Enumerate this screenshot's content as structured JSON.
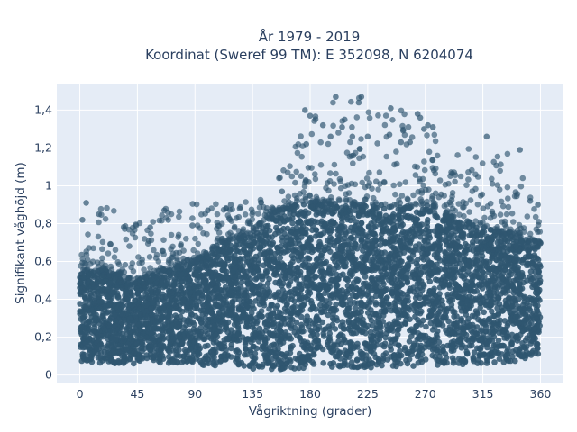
{
  "chart_data": {
    "type": "scatter",
    "title_line1": "År 1979 - 2019",
    "title_line2": "Koordinat (Sweref 99 TM): E 352098, N 6204074",
    "xlabel": "Vågriktning (grader)",
    "ylabel": "Signifikant våghöjd (m)",
    "xlim": [
      -18,
      378
    ],
    "ylim": [
      -0.04,
      1.54
    ],
    "x_ticks": [
      0,
      45,
      90,
      135,
      180,
      225,
      270,
      315,
      360
    ],
    "x_tick_labels": [
      "0",
      "45",
      "90",
      "135",
      "180",
      "225",
      "270",
      "315",
      "360"
    ],
    "y_ticks": [
      0,
      0.2,
      0.4,
      0.6,
      0.8,
      1.0,
      1.2,
      1.4
    ],
    "y_tick_labels": [
      "0",
      "0,2",
      "0,4",
      "0,6",
      "0,8",
      "1",
      "1,2",
      "1,4"
    ],
    "grid": true,
    "marker_color": "#2f5670",
    "plot_bg": "#e5ecf6",
    "envelope": {
      "x": [
        0,
        20,
        45,
        60,
        90,
        110,
        135,
        150,
        165,
        180,
        200,
        225,
        250,
        270,
        290,
        315,
        335,
        360
      ],
      "y_min": [
        0.06,
        0.05,
        0.05,
        0.05,
        0.04,
        0.04,
        0.02,
        0.02,
        0.02,
        0.03,
        0.03,
        0.03,
        0.03,
        0.04,
        0.04,
        0.05,
        0.06,
        0.07
      ],
      "y_dense_top": [
        0.55,
        0.55,
        0.5,
        0.55,
        0.6,
        0.7,
        0.75,
        0.85,
        0.9,
        0.92,
        0.9,
        0.9,
        0.9,
        0.9,
        0.85,
        0.78,
        0.75,
        0.7
      ],
      "y_max": [
        0.8,
        0.9,
        0.8,
        0.88,
        0.92,
        0.9,
        0.92,
        0.95,
        1.2,
        1.4,
        1.47,
        1.48,
        1.42,
        1.32,
        1.2,
        1.26,
        1.19,
        0.9
      ]
    },
    "outliers": [
      {
        "x": 200,
        "y": 1.47
      },
      {
        "x": 220,
        "y": 1.47
      },
      {
        "x": 218,
        "y": 1.44
      },
      {
        "x": 243,
        "y": 1.41
      },
      {
        "x": 176,
        "y": 1.4
      },
      {
        "x": 180,
        "y": 1.37
      },
      {
        "x": 207,
        "y": 1.35
      },
      {
        "x": 264,
        "y": 1.38
      },
      {
        "x": 266,
        "y": 1.36
      },
      {
        "x": 272,
        "y": 1.32
      },
      {
        "x": 269,
        "y": 1.3
      },
      {
        "x": 190,
        "y": 1.32
      },
      {
        "x": 205,
        "y": 1.31
      },
      {
        "x": 196,
        "y": 1.26
      },
      {
        "x": 213,
        "y": 1.26
      },
      {
        "x": 225,
        "y": 1.26
      },
      {
        "x": 242,
        "y": 1.27
      },
      {
        "x": 276,
        "y": 1.31
      },
      {
        "x": 318,
        "y": 1.26
      },
      {
        "x": 177,
        "y": 1.22
      },
      {
        "x": 251,
        "y": 1.23
      },
      {
        "x": 258,
        "y": 1.23
      },
      {
        "x": 344,
        "y": 1.19
      },
      {
        "x": 5,
        "y": 0.91
      },
      {
        "x": 15,
        "y": 0.85
      },
      {
        "x": 2,
        "y": 0.82
      },
      {
        "x": 66,
        "y": 0.87
      },
      {
        "x": 55,
        "y": 0.78
      },
      {
        "x": 88,
        "y": 0.79
      },
      {
        "x": 100,
        "y": 0.87
      },
      {
        "x": 118,
        "y": 0.9
      },
      {
        "x": 125,
        "y": 0.88
      },
      {
        "x": 158,
        "y": 0.97
      },
      {
        "x": 352,
        "y": 0.92
      },
      {
        "x": 358,
        "y": 0.9
      }
    ]
  }
}
